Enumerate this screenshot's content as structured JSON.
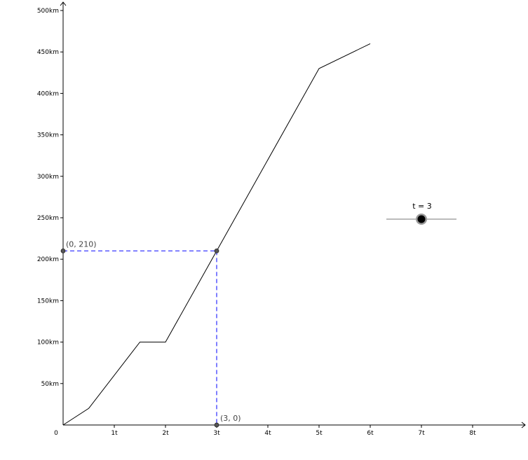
{
  "chart_data": {
    "type": "line",
    "x_tick_labels": [
      "0",
      "1t",
      "2t",
      "3t",
      "4t",
      "5t",
      "6t",
      "7t",
      "8t"
    ],
    "y_tick_labels": [
      "50km",
      "100km",
      "150km",
      "200km",
      "250km",
      "300km",
      "350km",
      "400km",
      "450km",
      "500km"
    ],
    "x_ticks": [
      0,
      1,
      2,
      3,
      4,
      5,
      6,
      7,
      8
    ],
    "y_ticks": [
      50,
      100,
      150,
      200,
      250,
      300,
      350,
      400,
      450,
      500
    ],
    "xlim": [
      0,
      9.1
    ],
    "ylim": [
      0,
      510
    ],
    "grid": false,
    "series": [
      {
        "x": [
          0,
          0.5,
          1.5,
          2,
          5,
          6
        ],
        "y": [
          0,
          20,
          100,
          100,
          430,
          460
        ],
        "color": "#000000"
      }
    ],
    "highlight": {
      "x": 3,
      "y": 210,
      "y_axis_label": "(0, 210)",
      "x_axis_label": "(3, 0)",
      "guide_color": "#5555ff"
    },
    "slider": {
      "label": "t = 3",
      "value": 3,
      "min": 0,
      "max": 6
    }
  }
}
